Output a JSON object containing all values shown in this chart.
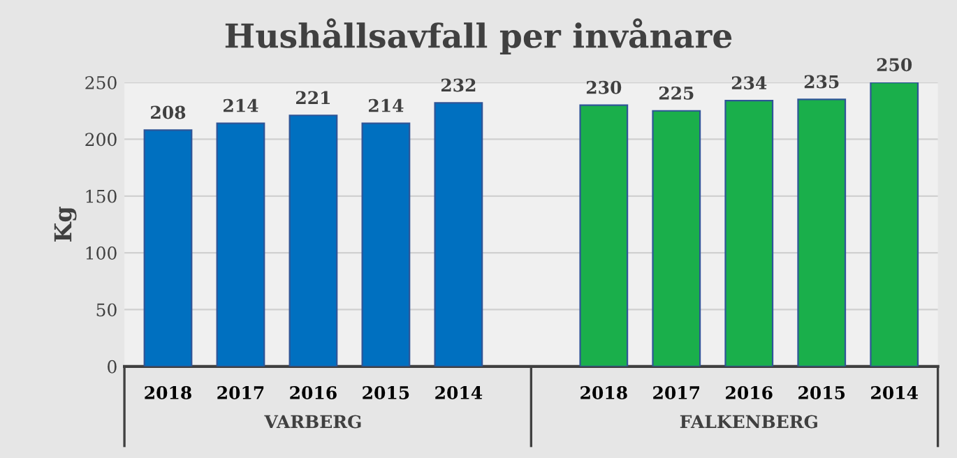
{
  "chart_data": {
    "type": "bar",
    "title": "Hushållsavfall per invånare",
    "ylabel": "Kg",
    "categories": [
      "2018",
      "2017",
      "2016",
      "2015",
      "2014",
      null,
      "2018",
      "2017",
      "2016",
      "2015",
      "2014"
    ],
    "series": [
      {
        "name": "VARBERG",
        "color": "#0070c0",
        "values": [
          208,
          214,
          221,
          214,
          232,
          null,
          null,
          null,
          null,
          null,
          null
        ]
      },
      {
        "name": "FALKENBERG",
        "color": "#1aaf4b",
        "values": [
          null,
          null,
          null,
          null,
          null,
          null,
          230,
          225,
          234,
          235,
          250
        ]
      }
    ],
    "ylim": [
      0,
      250
    ],
    "yticks": [
      0,
      50,
      100,
      150,
      200,
      250
    ],
    "grid": "y",
    "data_labels": true,
    "legend": false
  }
}
